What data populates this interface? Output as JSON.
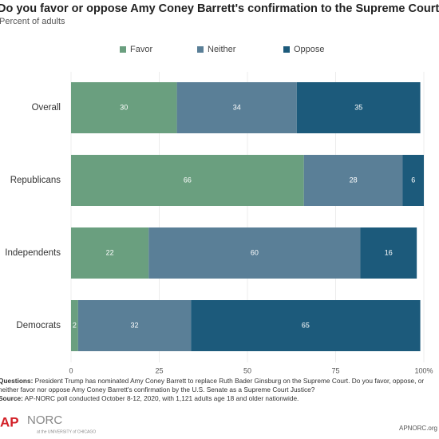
{
  "chart_data": {
    "type": "stacked-barh",
    "title": "Do you favor or oppose Amy Coney Barrett's confirmation to the Supreme Court?",
    "subtitle": "Percent of adults",
    "categories": [
      "Overall",
      "Republicans",
      "Independents",
      "Democrats"
    ],
    "series": [
      {
        "name": "Favor",
        "color": "#6a9f7f",
        "values": [
          30,
          66,
          22,
          2
        ]
      },
      {
        "name": "Neither",
        "color": "#5a7f97",
        "values": [
          34,
          28,
          60,
          32
        ]
      },
      {
        "name": "Oppose",
        "color": "#1c5a7b",
        "values": [
          35,
          6,
          16,
          65
        ]
      }
    ],
    "xlim": [
      0,
      100
    ],
    "xticks": [
      0,
      25,
      50,
      75,
      {
        "value": 100,
        "label": "100%"
      }
    ],
    "grid": true,
    "legend": "top",
    "questions_label": "Questions:",
    "questions": "President Trump has nominated Amy Coney Barrett to replace Ruth Bader Ginsburg on the Supreme Court. Do you favor, oppose, or neither favor nor oppose Amy Coney Barrett's confirmation by the U.S. Senate as a Supreme Court Justice?",
    "source_label": "Source:",
    "source": "AP-NORC poll conducted October 8-12, 2020, with 1,121 adults age 18 and older nationwide."
  },
  "footer": {
    "logo_ap": "AP",
    "logo_norc": "NORC",
    "logo_norc_sub": "at the UNIVERSITY of CHICAGO",
    "url": "APNORC.org"
  }
}
